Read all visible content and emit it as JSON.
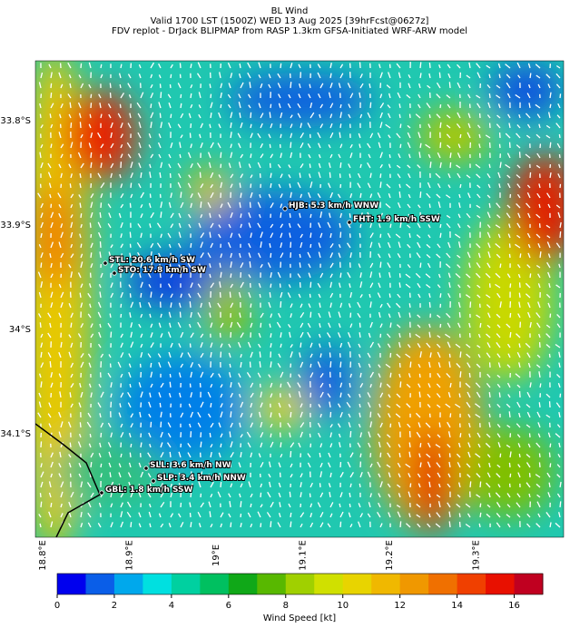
{
  "title": "BL Wind",
  "subtitle_lines": [
    "Valid 1700 LST (1500Z) WED 13 Aug 2025 [39hrFcst@0627z]",
    "FDV replot - DrJack BLIPMAP from RASP 1.3km GFSA-Initiated WRF-ARW model"
  ],
  "lat_labels": [
    "33.8°S",
    "33.9°S",
    "34°S",
    "34.1°S"
  ],
  "lon_labels": [
    "18.8°E",
    "18.9°E",
    "19°E",
    "19.1°E",
    "19.2°E",
    "19.3°E"
  ],
  "stations": [
    "HJB: 5.3 km/h WNW",
    "FHT: 1.9 km/h SSW",
    "STL: 20.6 km/h SW",
    "STO: 17.8 km/h SW",
    "SLL: 3.6 km/h NW",
    "SLP: 3.4 km/h NNW",
    "GBL: 1.8 km/h SSW"
  ],
  "colorbar": {
    "label": "Wind Speed [kt]",
    "lim": [
      0,
      17
    ],
    "ticks": [
      0,
      2,
      4,
      6,
      8,
      10,
      12,
      14,
      16
    ],
    "colors": [
      "#0000ee",
      "#0a5ee8",
      "#00a8ec",
      "#00e0e0",
      "#00d0a0",
      "#00c060",
      "#10a818",
      "#58b800",
      "#a0d000",
      "#d0e000",
      "#e8d400",
      "#f0b800",
      "#f09800",
      "#f07000",
      "#f04000",
      "#e81000",
      "#c00020"
    ]
  }
}
